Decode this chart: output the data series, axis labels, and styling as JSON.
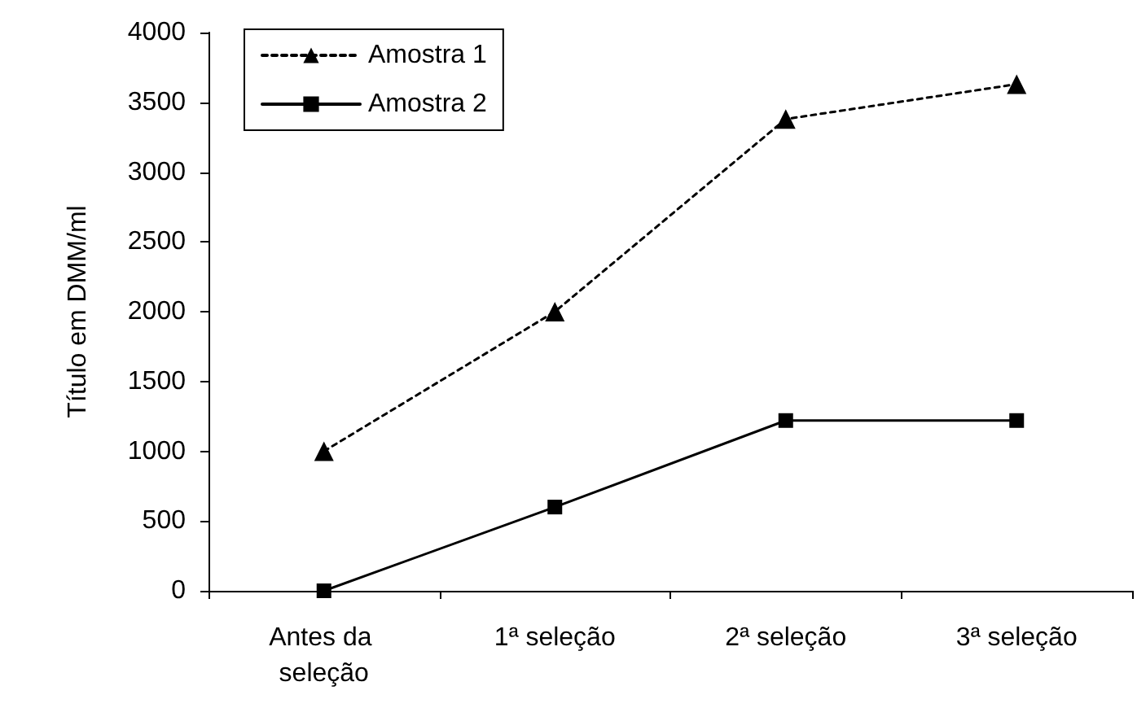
{
  "chart_data": {
    "type": "line",
    "ylabel": "Título em DMM/ml",
    "categories": [
      "Antes da seleção",
      "1ª seleção",
      "2ª seleção",
      "3ª seleção"
    ],
    "series": [
      {
        "name": "Amostra 1",
        "color": "#000000",
        "values": [
          1000,
          2000,
          3380,
          3630
        ],
        "marker": "triangle",
        "line_style": "dotted"
      },
      {
        "name": "Amostra 2",
        "color": "#000000",
        "values": [
          0,
          600,
          1220,
          1220
        ],
        "marker": "square",
        "line_style": "solid"
      }
    ],
    "ylim": [
      0,
      4000
    ],
    "yticks": [
      0,
      500,
      1000,
      1500,
      2000,
      2500,
      3000,
      3500,
      4000
    ],
    "grid": false,
    "legend": "top left"
  }
}
